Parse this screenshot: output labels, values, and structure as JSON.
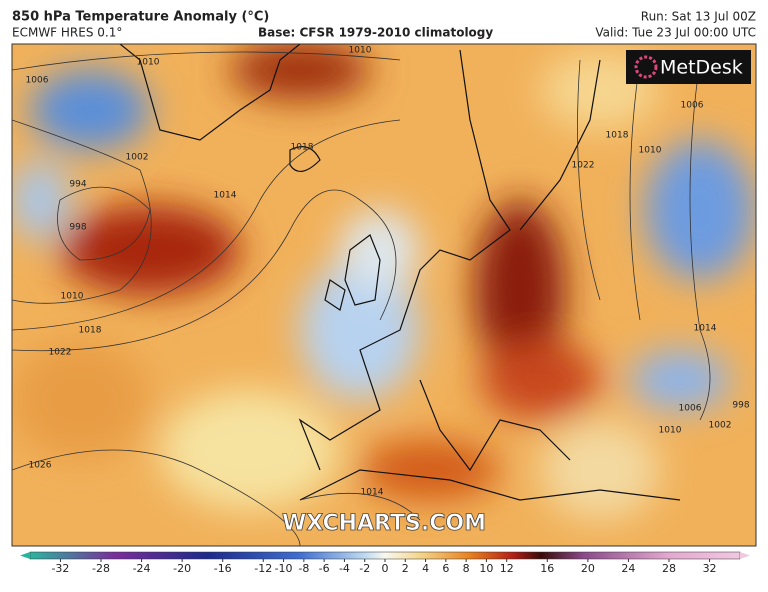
{
  "header": {
    "title": "850 hPa Temperature Anomaly (°C)",
    "model": "ECMWF HRES 0.1°",
    "base": "Base: CFSR 1979-2010 climatology",
    "run": "Run: Sat 13 Jul 00Z",
    "valid": "Valid: Tue 23 Jul 00:00 UTC"
  },
  "logo": "MetDesk",
  "watermark": "WXCHARTS.COM",
  "isobar_labels": [
    "1010",
    "1006",
    "1002",
    "994",
    "998",
    "1010",
    "1018",
    "1022",
    "1026",
    "1018",
    "1014",
    "1010",
    "1006",
    "1010",
    "1018",
    "1022",
    "1014",
    "1006",
    "1010",
    "1014",
    "1002",
    "998"
  ],
  "colorbar": {
    "lim": [
      -35,
      35
    ],
    "ticks": [
      -32,
      -28,
      -24,
      -20,
      -16,
      -12,
      -10,
      -8,
      -6,
      -4,
      -2,
      0,
      2,
      4,
      6,
      8,
      10,
      12,
      16,
      20,
      24,
      28,
      32
    ]
  }
}
